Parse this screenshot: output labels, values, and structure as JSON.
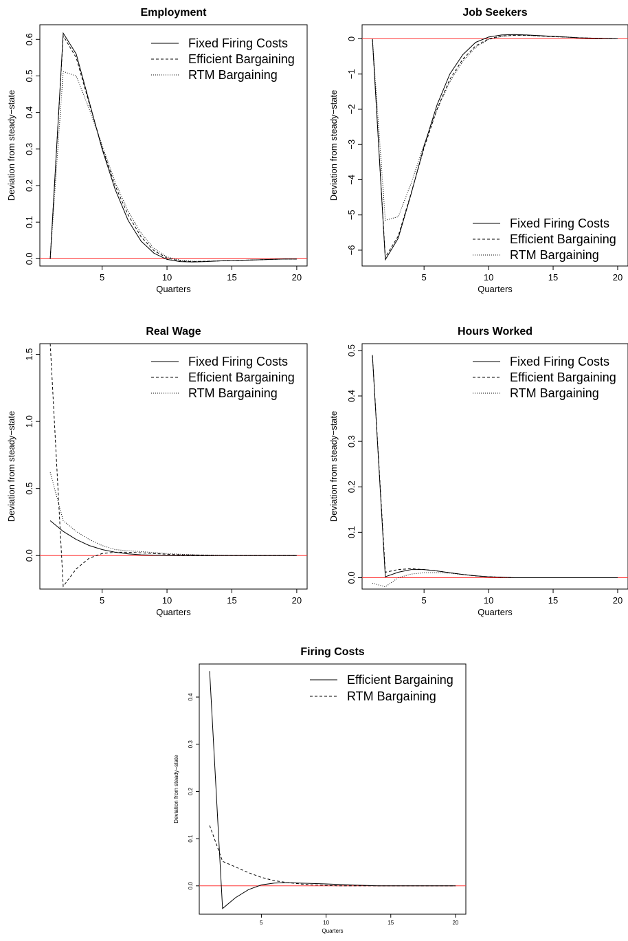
{
  "colors": {
    "zero_line": "#ff3333",
    "series": "#000000",
    "background": "#ffffff"
  },
  "chart_data": [
    {
      "type": "line",
      "title": "Employment",
      "xlabel": "Quarters",
      "ylabel": "Deviation from steady−state",
      "xlim": [
        0.2,
        20.8
      ],
      "ylim": [
        -0.02,
        0.64
      ],
      "xticks": [
        5,
        10,
        15,
        20
      ],
      "yticks": [
        0.0,
        0.1,
        0.2,
        0.3,
        0.4,
        0.5,
        0.6
      ],
      "ytick_labels": [
        "0.0",
        "0.1",
        "0.2",
        "0.3",
        "0.4",
        "0.5",
        "0.6"
      ],
      "legend_position": "top-right",
      "zero_line": true,
      "x": [
        1,
        2,
        3,
        4,
        5,
        6,
        7,
        8,
        9,
        10,
        11,
        12,
        13,
        14,
        15,
        16,
        17,
        18,
        19,
        20
      ],
      "series": [
        {
          "name": "Fixed Firing Costs",
          "style": "solid",
          "values": [
            0,
            0.617,
            0.56,
            0.43,
            0.3,
            0.19,
            0.105,
            0.048,
            0.015,
            -0.002,
            -0.008,
            -0.009,
            -0.008,
            -0.006,
            -0.005,
            -0.004,
            -0.003,
            -0.002,
            -0.001,
            -0.001
          ]
        },
        {
          "name": "Efficient Bargaining",
          "style": "dashed",
          "values": [
            0,
            0.61,
            0.55,
            0.425,
            0.305,
            0.2,
            0.12,
            0.06,
            0.022,
            0.002,
            -0.006,
            -0.008,
            -0.007,
            -0.006,
            -0.005,
            -0.004,
            -0.003,
            -0.002,
            -0.001,
            -0.001
          ]
        },
        {
          "name": "RTM Bargaining",
          "style": "dotted",
          "values": [
            0,
            0.512,
            0.5,
            0.41,
            0.31,
            0.21,
            0.13,
            0.07,
            0.028,
            0.005,
            -0.004,
            -0.007,
            -0.007,
            -0.006,
            -0.005,
            -0.004,
            -0.003,
            -0.002,
            -0.001,
            -0.001
          ]
        }
      ]
    },
    {
      "type": "line",
      "title": "Job Seekers",
      "xlabel": "Quarters",
      "ylabel": "Deviation from steady−state",
      "xlim": [
        0.2,
        20.8
      ],
      "ylim": [
        -6.45,
        0.4
      ],
      "xticks": [
        5,
        10,
        15,
        20
      ],
      "yticks": [
        -6,
        -5,
        -4,
        -3,
        -2,
        -1,
        0
      ],
      "ytick_labels": [
        "−6",
        "−5",
        "−4",
        "−3",
        "−2",
        "−1",
        "0"
      ],
      "legend_position": "bottom-right",
      "zero_line": true,
      "x": [
        1,
        2,
        3,
        4,
        5,
        6,
        7,
        8,
        9,
        10,
        11,
        12,
        13,
        14,
        15,
        16,
        17,
        18,
        19,
        20
      ],
      "series": [
        {
          "name": "Fixed Firing Costs",
          "style": "solid",
          "values": [
            0,
            -6.27,
            -5.66,
            -4.4,
            -3.05,
            -1.88,
            -1.0,
            -0.45,
            -0.1,
            0.05,
            0.11,
            0.12,
            0.11,
            0.09,
            0.07,
            0.05,
            0.03,
            0.02,
            0.01,
            0.0
          ]
        },
        {
          "name": "Efficient Bargaining",
          "style": "dashed",
          "values": [
            0,
            -6.2,
            -5.6,
            -4.38,
            -3.1,
            -2.0,
            -1.15,
            -0.58,
            -0.2,
            0.0,
            0.08,
            0.1,
            0.1,
            0.08,
            0.06,
            0.05,
            0.03,
            0.02,
            0.01,
            0.0
          ]
        },
        {
          "name": "RTM Bargaining",
          "style": "dotted",
          "values": [
            0,
            -5.15,
            -5.05,
            -4.1,
            -3.0,
            -2.02,
            -1.22,
            -0.64,
            -0.24,
            -0.02,
            0.07,
            0.1,
            0.1,
            0.08,
            0.06,
            0.05,
            0.03,
            0.02,
            0.01,
            0.0
          ]
        }
      ]
    },
    {
      "type": "line",
      "title": "Real Wage",
      "xlabel": "Quarters",
      "ylabel": "Deviation from steady−state",
      "xlim": [
        0.2,
        20.8
      ],
      "ylim": [
        -0.25,
        1.58
      ],
      "xticks": [
        5,
        10,
        15,
        20
      ],
      "yticks": [
        0.0,
        0.5,
        1.0,
        1.5
      ],
      "ytick_labels": [
        "0.0",
        "0.5",
        "1.0",
        "1.5"
      ],
      "legend_position": "top-right",
      "zero_line": true,
      "x": [
        1,
        2,
        3,
        4,
        5,
        6,
        7,
        8,
        9,
        10,
        11,
        12,
        13,
        14,
        15,
        16,
        17,
        18,
        19,
        20
      ],
      "series": [
        {
          "name": "Fixed Firing Costs",
          "style": "solid",
          "values": [
            0.26,
            0.18,
            0.12,
            0.075,
            0.045,
            0.025,
            0.013,
            0.006,
            0.002,
            0.0,
            -0.001,
            -0.001,
            -0.001,
            0.0,
            0.0,
            0.0,
            0.0,
            0.0,
            0.0,
            0.0
          ]
        },
        {
          "name": "Efficient Bargaining",
          "style": "dashed",
          "values": [
            1.8,
            -0.23,
            -0.1,
            -0.02,
            0.015,
            0.025,
            0.025,
            0.02,
            0.015,
            0.01,
            0.006,
            0.004,
            0.002,
            0.001,
            0.0,
            0.0,
            0.0,
            0.0,
            0.0,
            0.0
          ]
        },
        {
          "name": "RTM Bargaining",
          "style": "dotted",
          "values": [
            0.62,
            0.26,
            0.18,
            0.12,
            0.075,
            0.045,
            0.035,
            0.03,
            0.022,
            0.015,
            0.01,
            0.007,
            0.004,
            0.002,
            0.001,
            0.0,
            0.0,
            0.0,
            0.0,
            0.0
          ]
        }
      ]
    },
    {
      "type": "line",
      "title": "Hours Worked",
      "xlabel": "Quarters",
      "ylabel": "Deviation from steady−state",
      "xlim": [
        0.2,
        20.8
      ],
      "ylim": [
        -0.025,
        0.515
      ],
      "xticks": [
        5,
        10,
        15,
        20
      ],
      "yticks": [
        0.0,
        0.1,
        0.2,
        0.3,
        0.4,
        0.5
      ],
      "ytick_labels": [
        "0.0",
        "0.1",
        "0.2",
        "0.3",
        "0.4",
        "0.5"
      ],
      "legend_position": "top-right",
      "zero_line": true,
      "x": [
        1,
        2,
        3,
        4,
        5,
        6,
        7,
        8,
        9,
        10,
        11,
        12,
        13,
        14,
        15,
        16,
        17,
        18,
        19,
        20
      ],
      "series": [
        {
          "name": "Fixed Firing Costs",
          "style": "solid",
          "values": [
            0.49,
            0.002,
            0.012,
            0.018,
            0.018,
            0.015,
            0.011,
            0.007,
            0.004,
            0.002,
            0.001,
            0.0,
            0.0,
            0.0,
            0.0,
            0.0,
            0.0,
            0.0,
            0.0,
            0.0
          ]
        },
        {
          "name": "Efficient Bargaining",
          "style": "dashed",
          "values": [
            0.49,
            0.012,
            0.018,
            0.02,
            0.018,
            0.015,
            0.011,
            0.007,
            0.004,
            0.002,
            0.001,
            0.0,
            0.0,
            0.0,
            0.0,
            0.0,
            0.0,
            0.0,
            0.0,
            0.0
          ]
        },
        {
          "name": "RTM Bargaining",
          "style": "dotted",
          "values": [
            -0.012,
            -0.02,
            0.0,
            0.008,
            0.011,
            0.011,
            0.01,
            0.007,
            0.004,
            0.002,
            0.001,
            0.0,
            0.0,
            0.0,
            0.0,
            0.0,
            0.0,
            0.0,
            0.0,
            0.0
          ]
        }
      ]
    },
    {
      "type": "line",
      "title": "Firing Costs",
      "xlabel": "Quarters",
      "ylabel": "Deviation from steady−state",
      "xlim": [
        0.2,
        20.8
      ],
      "ylim": [
        -0.06,
        0.47
      ],
      "xticks": [
        5,
        10,
        15,
        20
      ],
      "yticks": [
        0.0,
        0.1,
        0.2,
        0.3,
        0.4
      ],
      "ytick_labels": [
        "0.0",
        "0.1",
        "0.2",
        "0.3",
        "0.4"
      ],
      "legend_position": "top-right",
      "zero_line": true,
      "x": [
        1,
        2,
        3,
        4,
        5,
        6,
        7,
        8,
        9,
        10,
        11,
        12,
        13,
        14,
        15,
        16,
        17,
        18,
        19,
        20
      ],
      "series": [
        {
          "name": "Efficient Bargaining",
          "style": "solid",
          "values": [
            0.455,
            -0.048,
            -0.025,
            -0.008,
            0.002,
            0.006,
            0.007,
            0.006,
            0.005,
            0.004,
            0.003,
            0.002,
            0.001,
            0.0,
            0.0,
            0.0,
            0.0,
            0.0,
            0.0,
            0.0
          ]
        },
        {
          "name": "RTM Bargaining",
          "style": "dashed",
          "values": [
            0.128,
            0.052,
            0.04,
            0.028,
            0.018,
            0.011,
            0.007,
            0.004,
            0.002,
            0.001,
            0.0,
            0.0,
            0.0,
            0.0,
            0.0,
            0.0,
            0.0,
            0.0,
            0.0,
            0.0
          ]
        }
      ]
    }
  ]
}
